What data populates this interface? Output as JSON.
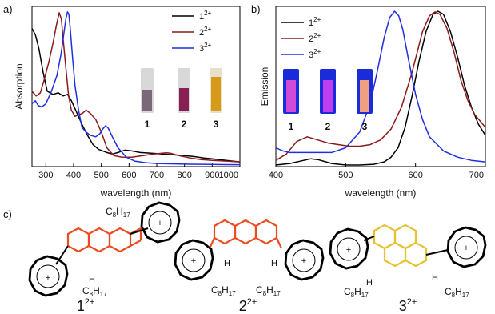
{
  "panel_labels": {
    "a": "a)",
    "b": "b)",
    "c": "c)"
  },
  "colors": {
    "series1": "#000000",
    "series2": "#8b1a1a",
    "series3": "#1f2fe0",
    "core2": "#ee4a22",
    "core3": "#e6c232",
    "alkyl": "#a8a8a8"
  },
  "vials_a": [
    {
      "label": "1",
      "liquid": "#7a6878",
      "glass": "#d8d8d8"
    },
    {
      "label": "2",
      "liquid": "#8a1e52",
      "glass": "#d8d8d8"
    },
    {
      "label": "3",
      "liquid": "#d49a18",
      "glass": "#e6e0cc"
    }
  ],
  "vials_b": [
    {
      "label": "1",
      "liquid": "#d24ad8",
      "glass": "#1a2cd8"
    },
    {
      "label": "2",
      "liquid": "#c03cf0",
      "glass": "#1a2cd8"
    },
    {
      "label": "3",
      "liquid": "#f0a080",
      "glass": "#1a2cd8"
    }
  ],
  "structures": {
    "labels": [
      {
        "base": "1",
        "charge": "2+"
      },
      {
        "base": "2",
        "charge": "2+"
      },
      {
        "base": "3",
        "charge": "2+"
      }
    ],
    "alkyl": {
      "c": "C",
      "c_sub": "8",
      "h": "H",
      "h_sub": "17",
      "hydrogen": "H"
    },
    "center_symbol": "+"
  },
  "chart_data": [
    {
      "panel": "a",
      "type": "line",
      "xlabel": "wavelength (nm)",
      "ylabel": "Absorption",
      "xlim": [
        250,
        1000
      ],
      "xticks": [
        300,
        400,
        500,
        600,
        700,
        800,
        900,
        1000
      ],
      "ylim": [
        0,
        1
      ],
      "legend_position": "top-right",
      "series": [
        {
          "name": "1",
          "charge": "2+",
          "x": [
            250,
            262,
            275,
            290,
            305,
            325,
            345,
            362,
            378,
            392,
            410,
            430,
            450,
            470,
            490,
            505,
            520,
            540,
            560,
            585,
            610,
            640,
            680,
            720,
            760,
            800,
            830,
            850,
            870,
            900,
            950,
            1000
          ],
          "y": [
            0.88,
            0.84,
            0.75,
            0.6,
            0.48,
            0.46,
            0.47,
            0.45,
            0.46,
            0.42,
            0.35,
            0.27,
            0.2,
            0.14,
            0.11,
            0.1,
            0.09,
            0.08,
            0.09,
            0.105,
            0.1,
            0.09,
            0.085,
            0.08,
            0.075,
            0.07,
            0.065,
            0.06,
            0.055,
            0.05,
            0.04,
            0.03
          ]
        },
        {
          "name": "2",
          "charge": "2+",
          "x": [
            250,
            265,
            280,
            295,
            310,
            325,
            338,
            348,
            356,
            362,
            372,
            382,
            392,
            405,
            418,
            432,
            445,
            460,
            480,
            500,
            520,
            545,
            575,
            610,
            650,
            690,
            720,
            735,
            750,
            780,
            820,
            860,
            900,
            950,
            1000
          ],
          "y": [
            0.48,
            0.45,
            0.47,
            0.56,
            0.66,
            0.78,
            0.9,
            0.98,
            0.94,
            0.82,
            0.63,
            0.45,
            0.36,
            0.32,
            0.33,
            0.34,
            0.36,
            0.34,
            0.3,
            0.22,
            0.12,
            0.07,
            0.06,
            0.06,
            0.07,
            0.08,
            0.085,
            0.088,
            0.085,
            0.07,
            0.055,
            0.045,
            0.04,
            0.035,
            0.03
          ]
        },
        {
          "name": "3",
          "charge": "2+",
          "x": [
            250,
            262,
            272,
            285,
            300,
            320,
            340,
            355,
            365,
            372,
            378,
            383,
            388,
            396,
            405,
            418,
            430,
            445,
            460,
            480,
            495,
            505,
            515,
            525,
            540,
            560,
            590,
            620,
            660,
            700,
            750,
            800,
            850,
            900,
            950,
            1000
          ],
          "y": [
            0.4,
            0.42,
            0.39,
            0.38,
            0.4,
            0.48,
            0.58,
            0.72,
            0.85,
            0.94,
            0.985,
            0.97,
            0.88,
            0.7,
            0.52,
            0.36,
            0.25,
            0.22,
            0.2,
            0.19,
            0.21,
            0.24,
            0.26,
            0.245,
            0.19,
            0.12,
            0.06,
            0.035,
            0.025,
            0.02,
            0.018,
            0.016,
            0.015,
            0.014,
            0.013,
            0.012
          ]
        }
      ]
    },
    {
      "panel": "b",
      "type": "line",
      "xlabel": "wavelength (nm)",
      "ylabel": "Emission",
      "xlim": [
        400,
        700
      ],
      "xticks": [
        400,
        500,
        600,
        700
      ],
      "ylim": [
        0,
        1
      ],
      "legend_position": "top-left",
      "series": [
        {
          "name": "1",
          "charge": "2+",
          "x": [
            400,
            420,
            440,
            450,
            460,
            480,
            500,
            520,
            540,
            555,
            565,
            575,
            585,
            595,
            605,
            615,
            625,
            632,
            640,
            650,
            660,
            670,
            680,
            690,
            700
          ],
          "y": [
            0.01,
            0.02,
            0.04,
            0.05,
            0.045,
            0.02,
            0.01,
            0.01,
            0.015,
            0.03,
            0.06,
            0.12,
            0.25,
            0.45,
            0.67,
            0.86,
            0.97,
            0.99,
            0.97,
            0.86,
            0.7,
            0.52,
            0.38,
            0.27,
            0.2
          ]
        },
        {
          "name": "2",
          "charge": "2+",
          "x": [
            400,
            415,
            430,
            445,
            460,
            475,
            490,
            505,
            520,
            535,
            550,
            565,
            580,
            595,
            610,
            620,
            628,
            635,
            645,
            655,
            665,
            675,
            685,
            700
          ],
          "y": [
            0.04,
            0.08,
            0.16,
            0.19,
            0.17,
            0.15,
            0.14,
            0.13,
            0.13,
            0.14,
            0.17,
            0.24,
            0.38,
            0.6,
            0.86,
            0.96,
            0.985,
            0.97,
            0.88,
            0.73,
            0.55,
            0.42,
            0.33,
            0.25
          ]
        },
        {
          "name": "3",
          "charge": "2+",
          "x": [
            400,
            410,
            420,
            440,
            460,
            480,
            500,
            520,
            535,
            545,
            555,
            563,
            570,
            576,
            582,
            590,
            600,
            610,
            620,
            640,
            660,
            680,
            700
          ],
          "y": [
            0.12,
            0.1,
            0.09,
            0.09,
            0.09,
            0.09,
            0.12,
            0.22,
            0.4,
            0.6,
            0.82,
            0.95,
            0.99,
            0.96,
            0.87,
            0.68,
            0.46,
            0.3,
            0.19,
            0.1,
            0.06,
            0.04,
            0.03
          ]
        }
      ]
    }
  ]
}
